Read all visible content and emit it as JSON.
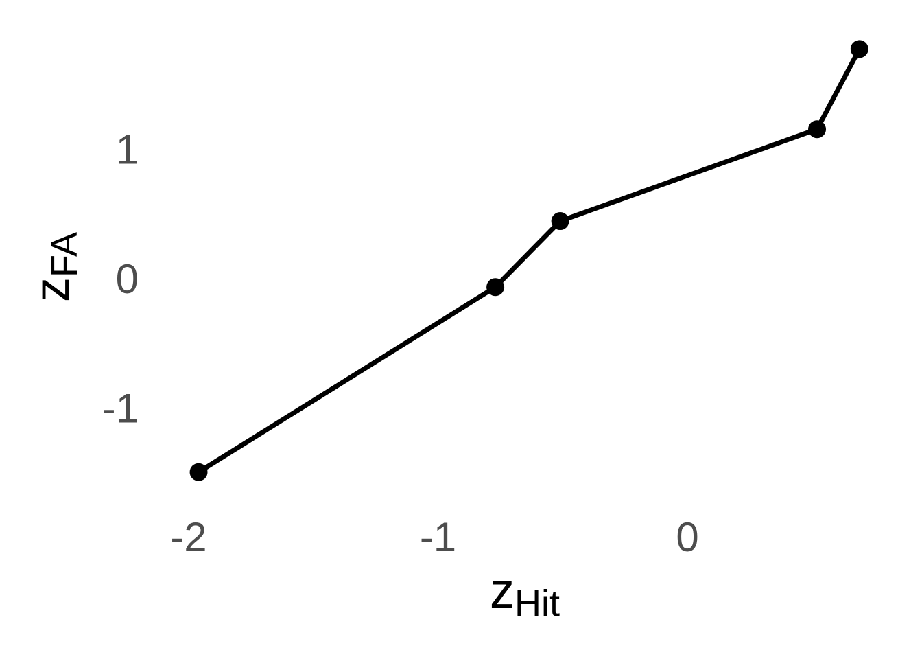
{
  "chart_data": {
    "type": "line",
    "title": "",
    "xlabel": {
      "main": "z",
      "sub": "Hit"
    },
    "ylabel": {
      "main": "z",
      "sub": "FA"
    },
    "x_ticks": [
      -2,
      -1,
      0
    ],
    "x_tick_labels": [
      "-2",
      "-1",
      "0"
    ],
    "y_ticks": [
      -1,
      0,
      1
    ],
    "y_tick_labels": [
      "-1",
      "0",
      "1"
    ],
    "xlim": [
      -2.04,
      0.72
    ],
    "ylim": [
      -1.65,
      1.85
    ],
    "grid": false,
    "series": [
      {
        "x": [
          -1.96,
          -0.77,
          -0.51,
          0.52,
          0.69
        ],
        "y": [
          -1.5,
          -0.07,
          0.44,
          1.15,
          1.77
        ],
        "color": "#000000",
        "markers": true
      }
    ]
  }
}
